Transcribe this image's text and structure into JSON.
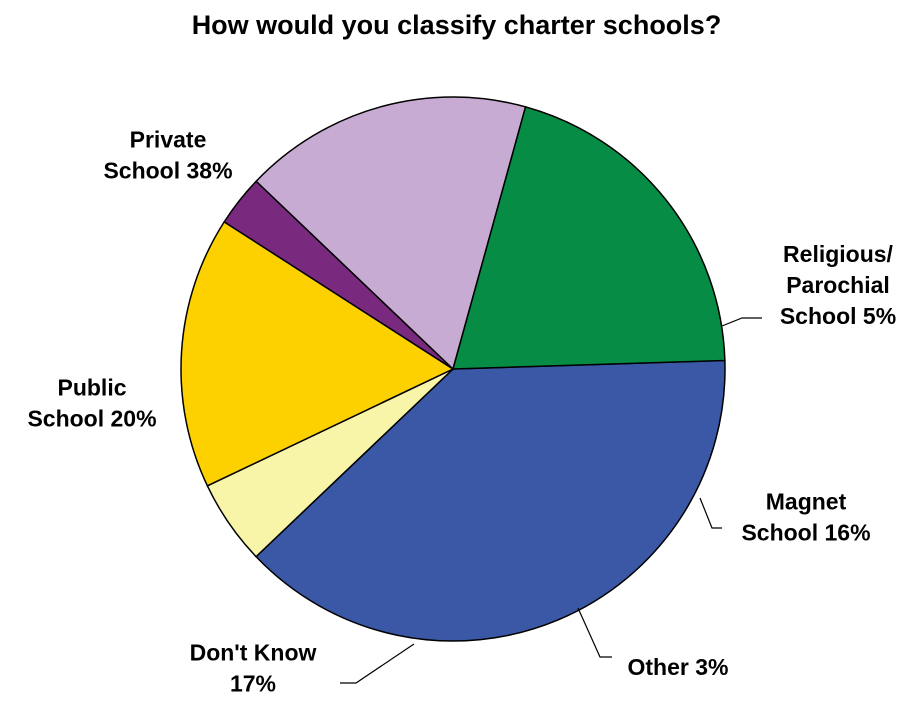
{
  "chart_data": {
    "type": "pie",
    "title": "How would you classify charter schools?",
    "slices": [
      {
        "label_lines": [
          "Private",
          "School 38%"
        ],
        "value": 38,
        "color": "#3a58a6"
      },
      {
        "label_lines": [
          "Religious/",
          "Parochial",
          "School 5%"
        ],
        "value": 5,
        "color": "#f8f5a8"
      },
      {
        "label_lines": [
          "Magnet",
          "School 16%"
        ],
        "value": 16,
        "color": "#fdd100"
      },
      {
        "label_lines": [
          "Other 3%"
        ],
        "value": 3,
        "color": "#7a2a7e"
      },
      {
        "label_lines": [
          "Don't Know",
          "17%"
        ],
        "value": 17,
        "color": "#c7abd3"
      },
      {
        "label_lines": [
          "Public",
          "School 20%"
        ],
        "value": 20,
        "color": "#078c46"
      }
    ]
  }
}
